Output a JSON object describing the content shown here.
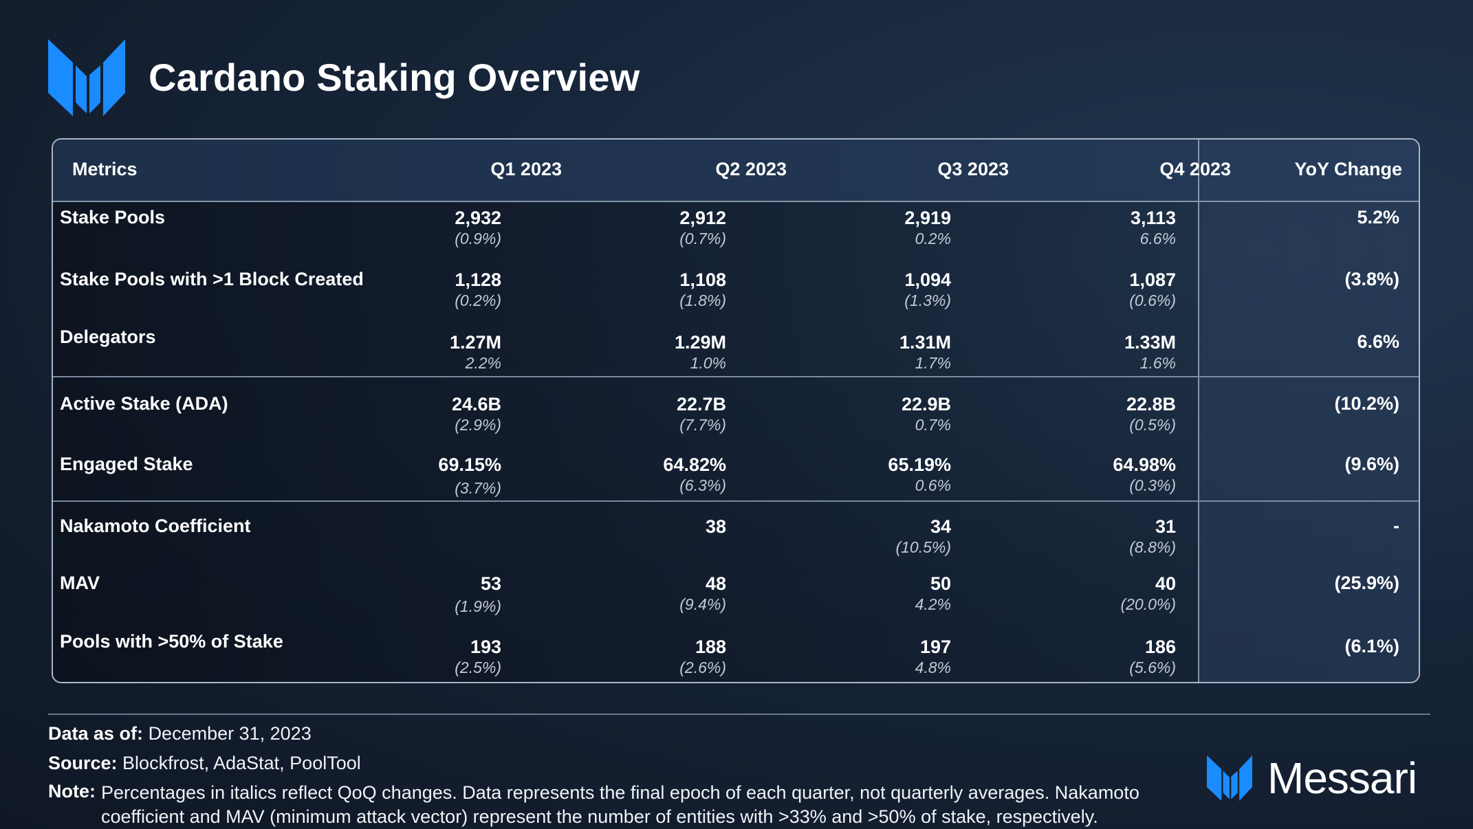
{
  "title": "Cardano Staking Overview",
  "colors": {
    "accent": "#1a8cff",
    "panel_border": "#aab7c8"
  },
  "table": {
    "headers": [
      "Metrics",
      "Q1 2023",
      "Q2 2023",
      "Q3 2023",
      "Q4 2023",
      "YoY Change"
    ],
    "rows": [
      {
        "label": "Stake Pools",
        "cells": [
          {
            "v": "2,932",
            "c": "(0.9%)"
          },
          {
            "v": "2,912",
            "c": "(0.7%)"
          },
          {
            "v": "2,919",
            "c": "0.2%"
          },
          {
            "v": "3,113",
            "c": "6.6%"
          }
        ],
        "yoy": "5.2%"
      },
      {
        "label": "Stake Pools with >1 Block Created",
        "cells": [
          {
            "v": "1,128",
            "c": "(0.2%)"
          },
          {
            "v": "1,108",
            "c": "(1.8%)"
          },
          {
            "v": "1,094",
            "c": "(1.3%)"
          },
          {
            "v": "1,087",
            "c": "(0.6%)"
          }
        ],
        "yoy": "(3.8%)"
      },
      {
        "label": "Delegators",
        "cells": [
          {
            "v": "1.27M",
            "c": "2.2%"
          },
          {
            "v": "1.29M",
            "c": "1.0%"
          },
          {
            "v": "1.31M",
            "c": "1.7%"
          },
          {
            "v": "1.33M",
            "c": "1.6%"
          }
        ],
        "yoy": "6.6%"
      },
      {
        "label": "Active Stake (ADA)",
        "cells": [
          {
            "v": "24.6B",
            "c": "(2.9%)"
          },
          {
            "v": "22.7B",
            "c": "(7.7%)"
          },
          {
            "v": "22.9B",
            "c": "0.7%"
          },
          {
            "v": "22.8B",
            "c": "(0.5%)"
          }
        ],
        "yoy": "(10.2%)"
      },
      {
        "label": "Engaged Stake",
        "cells": [
          {
            "v": "69.15%",
            "c": "(3.7%)"
          },
          {
            "v": "64.82%",
            "c": "(6.3%)"
          },
          {
            "v": "65.19%",
            "c": "0.6%"
          },
          {
            "v": "64.98%",
            "c": "(0.3%)"
          }
        ],
        "yoy": "(9.6%)"
      },
      {
        "label": "Nakamoto Coefficient",
        "cells": [
          {
            "v": "",
            "c": ""
          },
          {
            "v": "38",
            "c": ""
          },
          {
            "v": "34",
            "c": "(10.5%)"
          },
          {
            "v": "31",
            "c": "(8.8%)"
          }
        ],
        "yoy": "-"
      },
      {
        "label": "MAV",
        "cells": [
          {
            "v": "53",
            "c": "(1.9%)"
          },
          {
            "v": "48",
            "c": "(9.4%)"
          },
          {
            "v": "50",
            "c": "4.2%"
          },
          {
            "v": "40",
            "c": "(20.0%)"
          }
        ],
        "yoy": "(25.9%)"
      },
      {
        "label": "Pools with >50% of Stake",
        "cells": [
          {
            "v": "193",
            "c": "(2.5%)"
          },
          {
            "v": "188",
            "c": "(2.6%)"
          },
          {
            "v": "197",
            "c": "4.8%"
          },
          {
            "v": "186",
            "c": "(5.6%)"
          }
        ],
        "yoy": "(6.1%)"
      }
    ]
  },
  "footer": {
    "data_as_of_label": "Data as of:",
    "data_as_of_value": "December 31, 2023",
    "source_label": "Source:",
    "source_value": "Blockfrost, AdaStat, PoolTool",
    "note_label": "Note:",
    "note_value": "Percentages in italics reflect QoQ changes. Data represents the final epoch of each quarter, not quarterly averages. Nakamoto coefficient and MAV (minimum attack vector) represent the number of entities with >33% and >50% of stake, respectively."
  },
  "brand": {
    "name": "Messari",
    "logo_icon": "messari-logo-icon"
  }
}
